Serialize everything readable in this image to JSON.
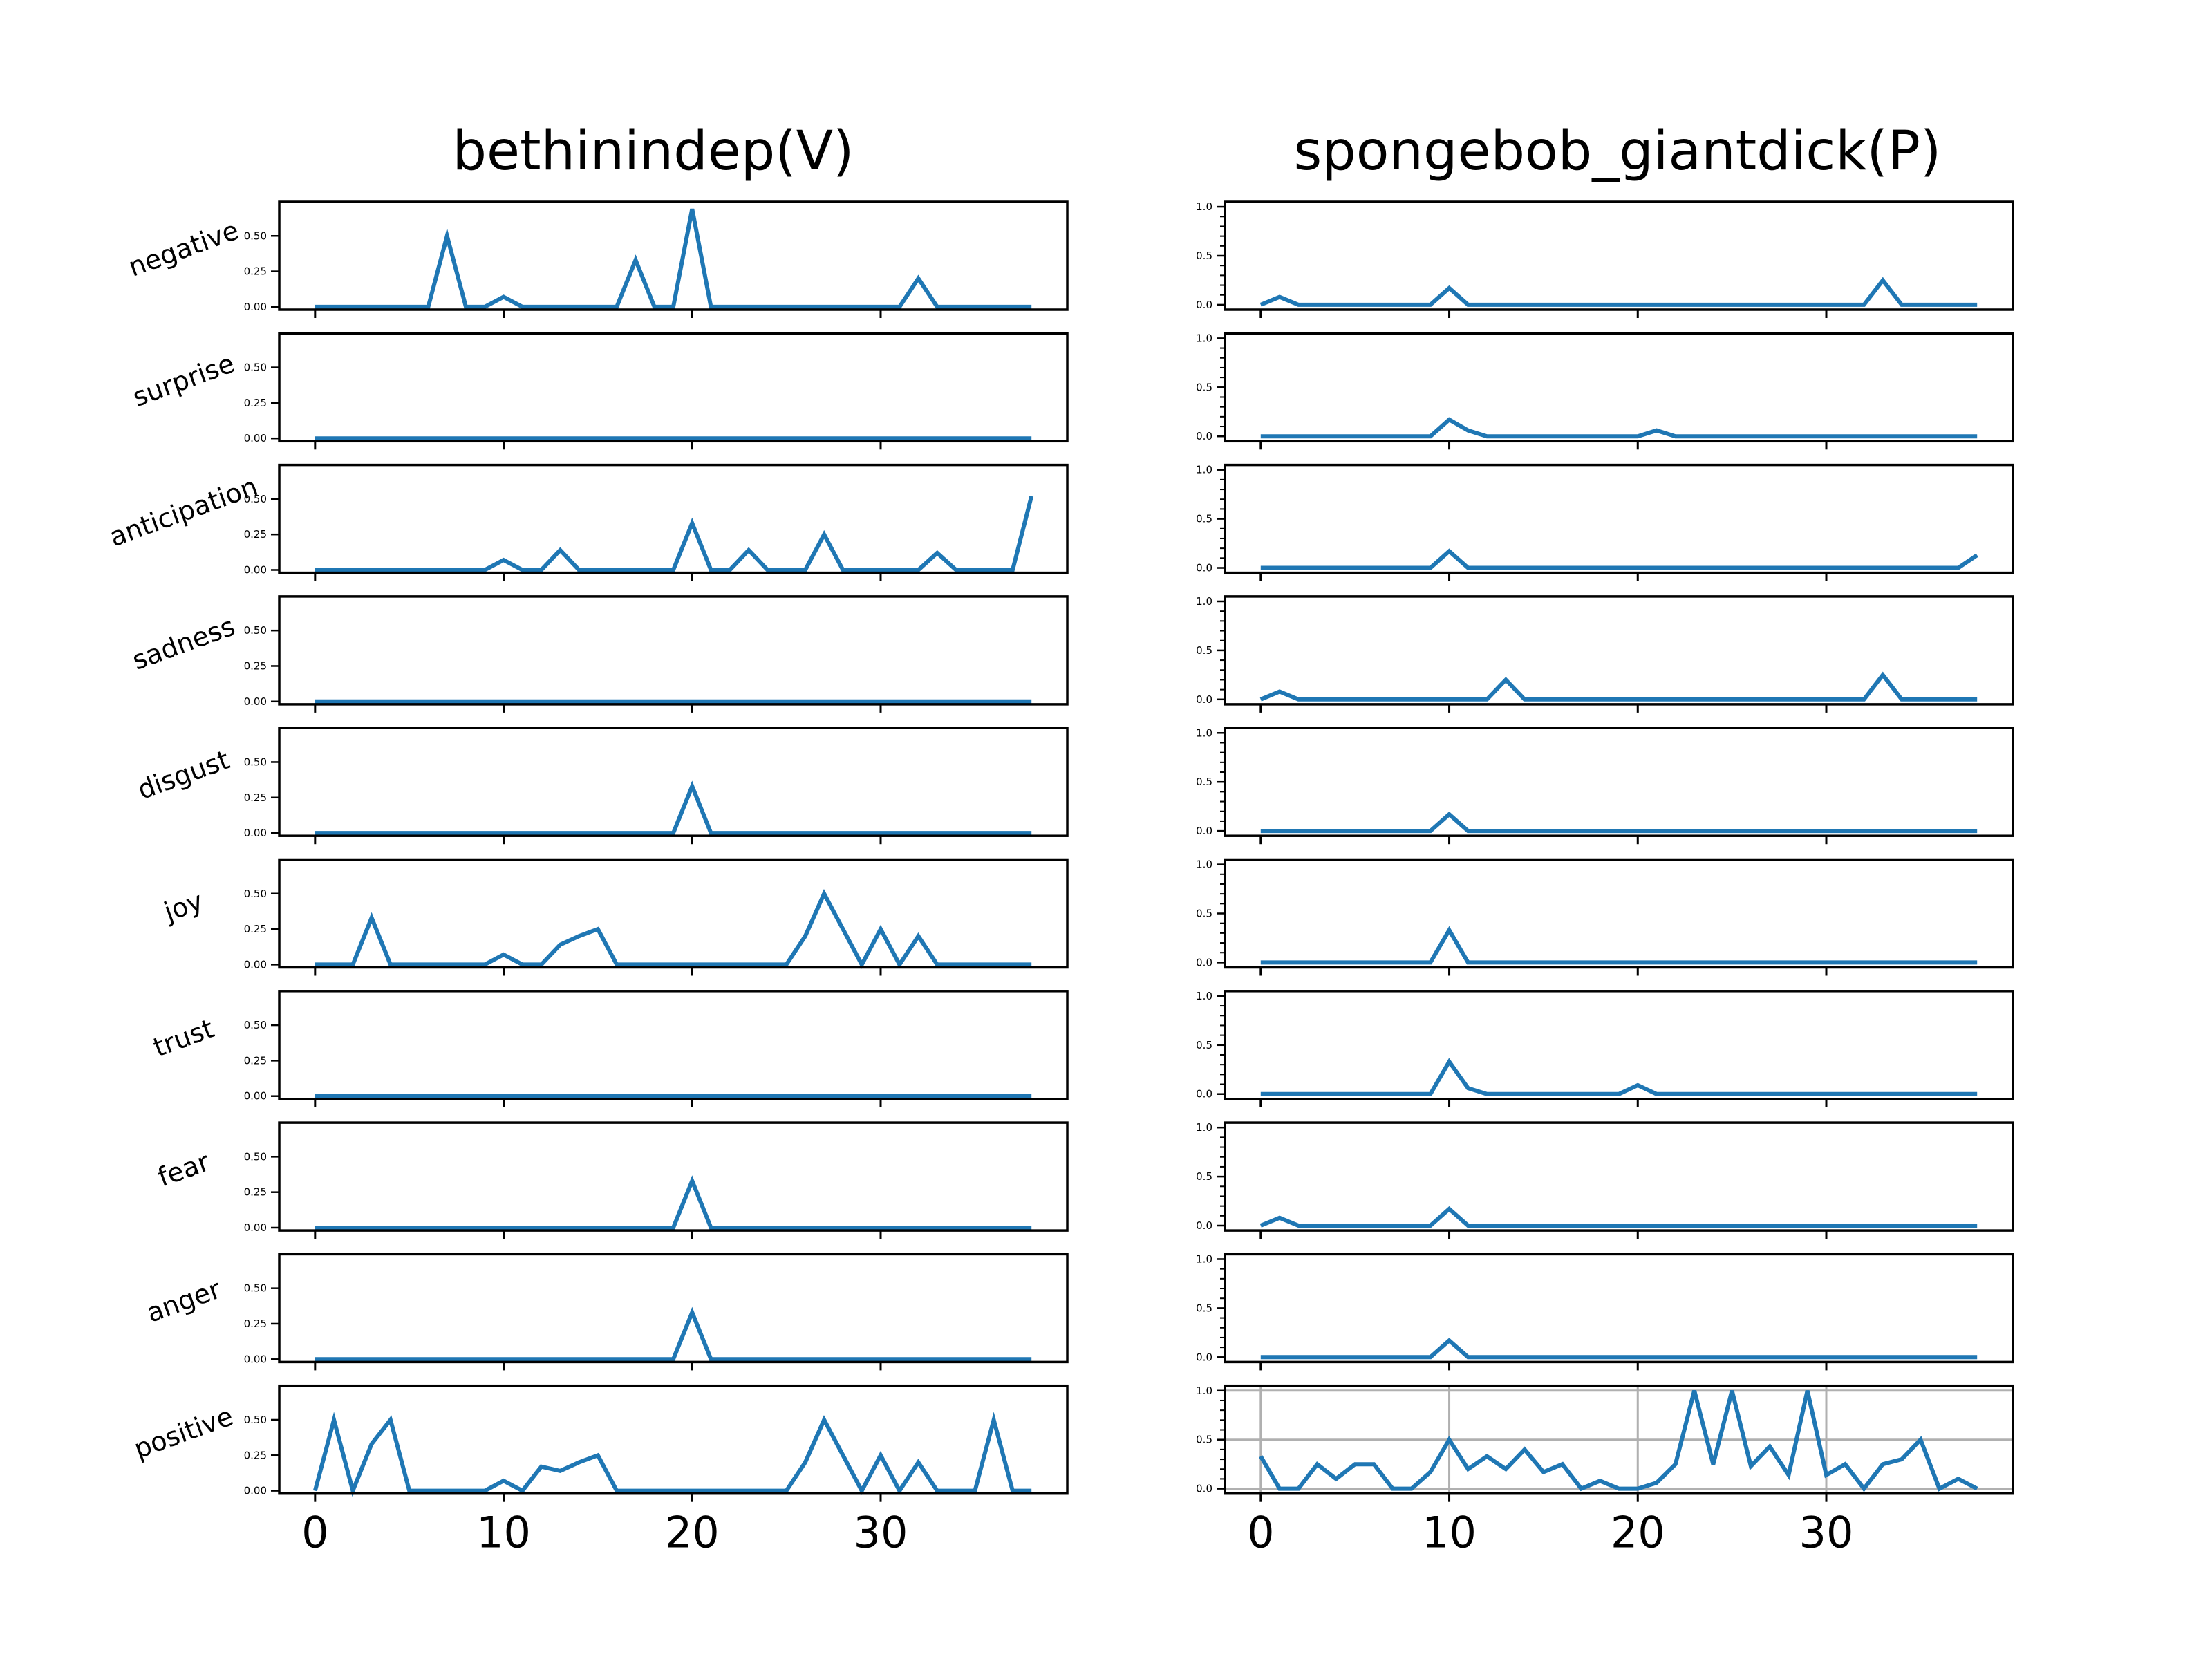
{
  "chart_data": {
    "type": "line",
    "line_color": "#1f77b4",
    "row_labels": [
      "negative",
      "surprise",
      "anticipation",
      "sadness",
      "disgust",
      "joy",
      "trust",
      "fear",
      "anger",
      "positive"
    ],
    "x_ticks": [
      "0",
      "10",
      "20",
      "30"
    ],
    "xlim": [
      -1.9,
      39.9
    ],
    "panels": [
      {
        "title": "bethinindep(V)",
        "ylim": [
          -0.02,
          0.74
        ],
        "y_ticks": [
          "0.00",
          "0.25",
          "0.50"
        ],
        "series": [
          {
            "label": "negative",
            "values": [
              0,
              0,
              0,
              0,
              0,
              0,
              0,
              0.5,
              0,
              0,
              0.07,
              0,
              0,
              0,
              0,
              0,
              0,
              0.33,
              0,
              0,
              0.69,
              0,
              0,
              0,
              0,
              0,
              0,
              0,
              0,
              0,
              0,
              0,
              0.2,
              0,
              0,
              0,
              0,
              0,
              0
            ]
          },
          {
            "label": "surprise",
            "values": [
              0,
              0,
              0,
              0,
              0,
              0,
              0,
              0,
              0,
              0,
              0,
              0,
              0,
              0,
              0,
              0,
              0,
              0,
              0,
              0,
              0,
              0,
              0,
              0,
              0,
              0,
              0,
              0,
              0,
              0,
              0,
              0,
              0,
              0,
              0,
              0,
              0,
              0,
              0
            ]
          },
          {
            "label": "anticipation",
            "values": [
              0,
              0,
              0,
              0,
              0,
              0,
              0,
              0,
              0,
              0,
              0.07,
              0,
              0,
              0.14,
              0,
              0,
              0,
              0,
              0,
              0,
              0.33,
              0,
              0,
              0.14,
              0,
              0,
              0,
              0.25,
              0,
              0,
              0,
              0,
              0,
              0.12,
              0,
              0,
              0,
              0,
              0.52
            ]
          },
          {
            "label": "sadness",
            "values": [
              0,
              0,
              0,
              0,
              0,
              0,
              0,
              0,
              0,
              0,
              0,
              0,
              0,
              0,
              0,
              0,
              0,
              0,
              0,
              0,
              0,
              0,
              0,
              0,
              0,
              0,
              0,
              0,
              0,
              0,
              0,
              0,
              0,
              0,
              0,
              0,
              0,
              0,
              0
            ]
          },
          {
            "label": "disgust",
            "values": [
              0,
              0,
              0,
              0,
              0,
              0,
              0,
              0,
              0,
              0,
              0,
              0,
              0,
              0,
              0,
              0,
              0,
              0,
              0,
              0,
              0.33,
              0,
              0,
              0,
              0,
              0,
              0,
              0,
              0,
              0,
              0,
              0,
              0,
              0,
              0,
              0,
              0,
              0,
              0
            ]
          },
          {
            "label": "joy",
            "values": [
              0,
              0,
              0,
              0.33,
              0,
              0,
              0,
              0,
              0,
              0,
              0.07,
              0,
              0,
              0.14,
              0.2,
              0.25,
              0,
              0,
              0,
              0,
              0,
              0,
              0,
              0,
              0,
              0,
              0.2,
              0.5,
              0.25,
              0,
              0.25,
              0,
              0.2,
              0,
              0,
              0,
              0,
              0,
              0
            ]
          },
          {
            "label": "trust",
            "values": [
              0,
              0,
              0,
              0,
              0,
              0,
              0,
              0,
              0,
              0,
              0,
              0,
              0,
              0,
              0,
              0,
              0,
              0,
              0,
              0,
              0,
              0,
              0,
              0,
              0,
              0,
              0,
              0,
              0,
              0,
              0,
              0,
              0,
              0,
              0,
              0,
              0,
              0,
              0
            ]
          },
          {
            "label": "fear",
            "values": [
              0,
              0,
              0,
              0,
              0,
              0,
              0,
              0,
              0,
              0,
              0,
              0,
              0,
              0,
              0,
              0,
              0,
              0,
              0,
              0,
              0.33,
              0,
              0,
              0,
              0,
              0,
              0,
              0,
              0,
              0,
              0,
              0,
              0,
              0,
              0,
              0,
              0,
              0,
              0
            ]
          },
          {
            "label": "anger",
            "values": [
              0,
              0,
              0,
              0,
              0,
              0,
              0,
              0,
              0,
              0,
              0,
              0,
              0,
              0,
              0,
              0,
              0,
              0,
              0,
              0,
              0.33,
              0,
              0,
              0,
              0,
              0,
              0,
              0,
              0,
              0,
              0,
              0,
              0,
              0,
              0,
              0,
              0,
              0,
              0
            ]
          },
          {
            "label": "positive",
            "values": [
              0,
              0.5,
              0,
              0.33,
              0.5,
              0,
              0,
              0,
              0,
              0,
              0.07,
              0,
              0.17,
              0.14,
              0.2,
              0.25,
              0,
              0,
              0,
              0,
              0,
              0,
              0,
              0,
              0,
              0,
              0.2,
              0.5,
              0.25,
              0,
              0.25,
              0,
              0.2,
              0,
              0,
              0,
              0.5,
              0,
              0
            ]
          }
        ]
      },
      {
        "title": "spongebob_giantdick(P)",
        "ylim": [
          -0.05,
          1.05
        ],
        "y_ticks": [
          "0.0",
          "0.5",
          "1.0"
        ],
        "grid_on_last_row": true,
        "series": [
          {
            "label": "negative",
            "values": [
              0,
              0.08,
              0,
              0,
              0,
              0,
              0,
              0,
              0,
              0,
              0.17,
              0,
              0,
              0,
              0,
              0,
              0,
              0,
              0,
              0,
              0,
              0,
              0,
              0,
              0,
              0,
              0,
              0,
              0,
              0,
              0,
              0,
              0,
              0.25,
              0,
              0,
              0,
              0,
              0
            ]
          },
          {
            "label": "surprise",
            "values": [
              0,
              0,
              0,
              0,
              0,
              0,
              0,
              0,
              0,
              0,
              0.17,
              0.06,
              0,
              0,
              0,
              0,
              0,
              0,
              0,
              0,
              0,
              0.06,
              0,
              0,
              0,
              0,
              0,
              0,
              0,
              0,
              0,
              0,
              0,
              0,
              0,
              0,
              0,
              0,
              0
            ]
          },
          {
            "label": "anticipation",
            "values": [
              0,
              0,
              0,
              0,
              0,
              0,
              0,
              0,
              0,
              0,
              0.17,
              0,
              0,
              0,
              0,
              0,
              0,
              0,
              0,
              0,
              0,
              0,
              0,
              0,
              0,
              0,
              0,
              0,
              0,
              0,
              0,
              0,
              0,
              0,
              0,
              0,
              0,
              0,
              0.13
            ]
          },
          {
            "label": "sadness",
            "values": [
              0,
              0.08,
              0,
              0,
              0,
              0,
              0,
              0,
              0,
              0,
              0,
              0,
              0,
              0.2,
              0,
              0,
              0,
              0,
              0,
              0,
              0,
              0,
              0,
              0,
              0,
              0,
              0,
              0,
              0,
              0,
              0,
              0,
              0,
              0.25,
              0,
              0,
              0,
              0,
              0
            ]
          },
          {
            "label": "disgust",
            "values": [
              0,
              0,
              0,
              0,
              0,
              0,
              0,
              0,
              0,
              0,
              0.17,
              0,
              0,
              0,
              0,
              0,
              0,
              0,
              0,
              0,
              0,
              0,
              0,
              0,
              0,
              0,
              0,
              0,
              0,
              0,
              0,
              0,
              0,
              0,
              0,
              0,
              0,
              0,
              0
            ]
          },
          {
            "label": "joy",
            "values": [
              0,
              0,
              0,
              0,
              0,
              0,
              0,
              0,
              0,
              0,
              0.33,
              0,
              0,
              0,
              0,
              0,
              0,
              0,
              0,
              0,
              0,
              0,
              0,
              0,
              0,
              0,
              0,
              0,
              0,
              0,
              0,
              0,
              0,
              0,
              0,
              0,
              0,
              0,
              0
            ]
          },
          {
            "label": "trust",
            "values": [
              0,
              0,
              0,
              0,
              0,
              0,
              0,
              0,
              0,
              0,
              0.33,
              0.06,
              0,
              0,
              0,
              0,
              0,
              0,
              0,
              0,
              0.09,
              0,
              0,
              0,
              0,
              0,
              0,
              0,
              0,
              0,
              0,
              0,
              0,
              0,
              0,
              0,
              0,
              0,
              0
            ]
          },
          {
            "label": "fear",
            "values": [
              0,
              0.08,
              0,
              0,
              0,
              0,
              0,
              0,
              0,
              0,
              0.17,
              0,
              0,
              0,
              0,
              0,
              0,
              0,
              0,
              0,
              0,
              0,
              0,
              0,
              0,
              0,
              0,
              0,
              0,
              0,
              0,
              0,
              0,
              0,
              0,
              0,
              0,
              0,
              0
            ]
          },
          {
            "label": "anger",
            "values": [
              0,
              0,
              0,
              0,
              0,
              0,
              0,
              0,
              0,
              0,
              0.17,
              0,
              0,
              0,
              0,
              0,
              0,
              0,
              0,
              0,
              0,
              0,
              0,
              0,
              0,
              0,
              0,
              0,
              0,
              0,
              0,
              0,
              0,
              0,
              0,
              0,
              0,
              0,
              0
            ]
          },
          {
            "label": "positive",
            "values": [
              0.33,
              0,
              0,
              0.25,
              0.1,
              0.25,
              0.25,
              0,
              0,
              0.17,
              0.5,
              0.2,
              0.33,
              0.2,
              0.4,
              0.17,
              0.25,
              0,
              0.08,
              0,
              0,
              0.06,
              0.25,
              1.0,
              0.25,
              1.0,
              0.23,
              0.43,
              0.14,
              1.0,
              0.14,
              0.25,
              0,
              0.25,
              0.3,
              0.5,
              0,
              0.1,
              0
            ]
          }
        ]
      }
    ]
  }
}
